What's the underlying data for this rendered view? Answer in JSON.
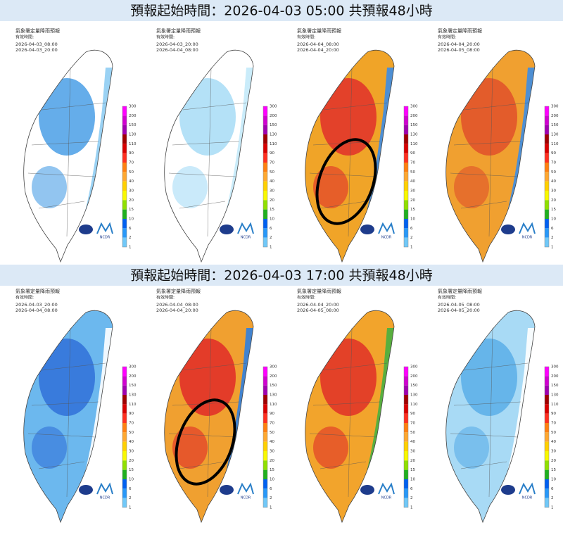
{
  "sections": [
    {
      "title": "預報起始時間：2026-04-03 05:00  共預報48小時",
      "panels": [
        {
          "title": "氣象署定量降雨預報",
          "valid_label": "有效時間:",
          "start": "2026-04-03_08:00",
          "end": "2026-04-03_20:00",
          "fill": "#ffffff",
          "accent": "#4a9fe6",
          "edge": "#8fcdf3",
          "circled": false
        },
        {
          "title": "氣象署定量降雨預報",
          "valid_label": "有效時間:",
          "start": "2026-04-03_20:00",
          "end": "2026-04-04_08:00",
          "fill": "#ffffff",
          "accent": "#a7dcf6",
          "edge": "#c4eaf9",
          "circled": false
        },
        {
          "title": "氣象署定量降雨預報",
          "valid_label": "有效時間:",
          "start": "2026-04-04_08:00",
          "end": "2026-04-04_20:00",
          "fill": "#f0a428",
          "accent": "#e0302a",
          "edge": "#3c8de6",
          "circled": true
        },
        {
          "title": "氣象署定量降雨預報",
          "valid_label": "有效時間:",
          "start": "2026-04-04_20:00",
          "end": "2026-04-05_08:00",
          "fill": "#f0a030",
          "accent": "#e0502a",
          "edge": "#3c8de6",
          "circled": false
        }
      ]
    },
    {
      "title": "預報起始時間：2026-04-03 17:00  共預報48小時",
      "panels": [
        {
          "title": "氣象署定量降雨預報",
          "valid_label": "有效時間:",
          "start": "2026-04-03_20:00",
          "end": "2026-04-04_08:00",
          "fill": "#6cb8ee",
          "accent": "#3070d8",
          "edge": "#ffffff",
          "circled": false
        },
        {
          "title": "氣象署定量降雨預報",
          "valid_label": "有效時間:",
          "start": "2026-04-04_08:00",
          "end": "2026-04-04_20:00",
          "fill": "#f0a030",
          "accent": "#e02a28",
          "edge": "#2f7fe0",
          "circled": true
        },
        {
          "title": "氣象署定量降雨預報",
          "valid_label": "有效時間:",
          "start": "2026-04-04_20:00",
          "end": "2026-04-05_08:00",
          "fill": "#f2a42c",
          "accent": "#e03028",
          "edge": "#48b040",
          "circled": false
        },
        {
          "title": "氣象署定量降雨預報",
          "valid_label": "有效時間:",
          "start": "2026-04-05_08:00",
          "end": "2026-04-05_20:00",
          "fill": "#a8daf5",
          "accent": "#5aaee8",
          "edge": "#ffffff",
          "circled": false
        }
      ]
    }
  ],
  "colorbar": {
    "labels": [
      "300",
      "200",
      "150",
      "130",
      "110",
      "90",
      "70",
      "50",
      "40",
      "30",
      "20",
      "15",
      "10",
      "6",
      "2",
      "1"
    ],
    "colors": [
      "#ff00ff",
      "#d000d0",
      "#a000b0",
      "#a00000",
      "#d80000",
      "#ff3020",
      "#ff8010",
      "#ffa830",
      "#ffd000",
      "#f8f800",
      "#90e000",
      "#20b020",
      "#0060f0",
      "#2898f8",
      "#70c8f8"
    ]
  },
  "logo_text": "NCDR"
}
